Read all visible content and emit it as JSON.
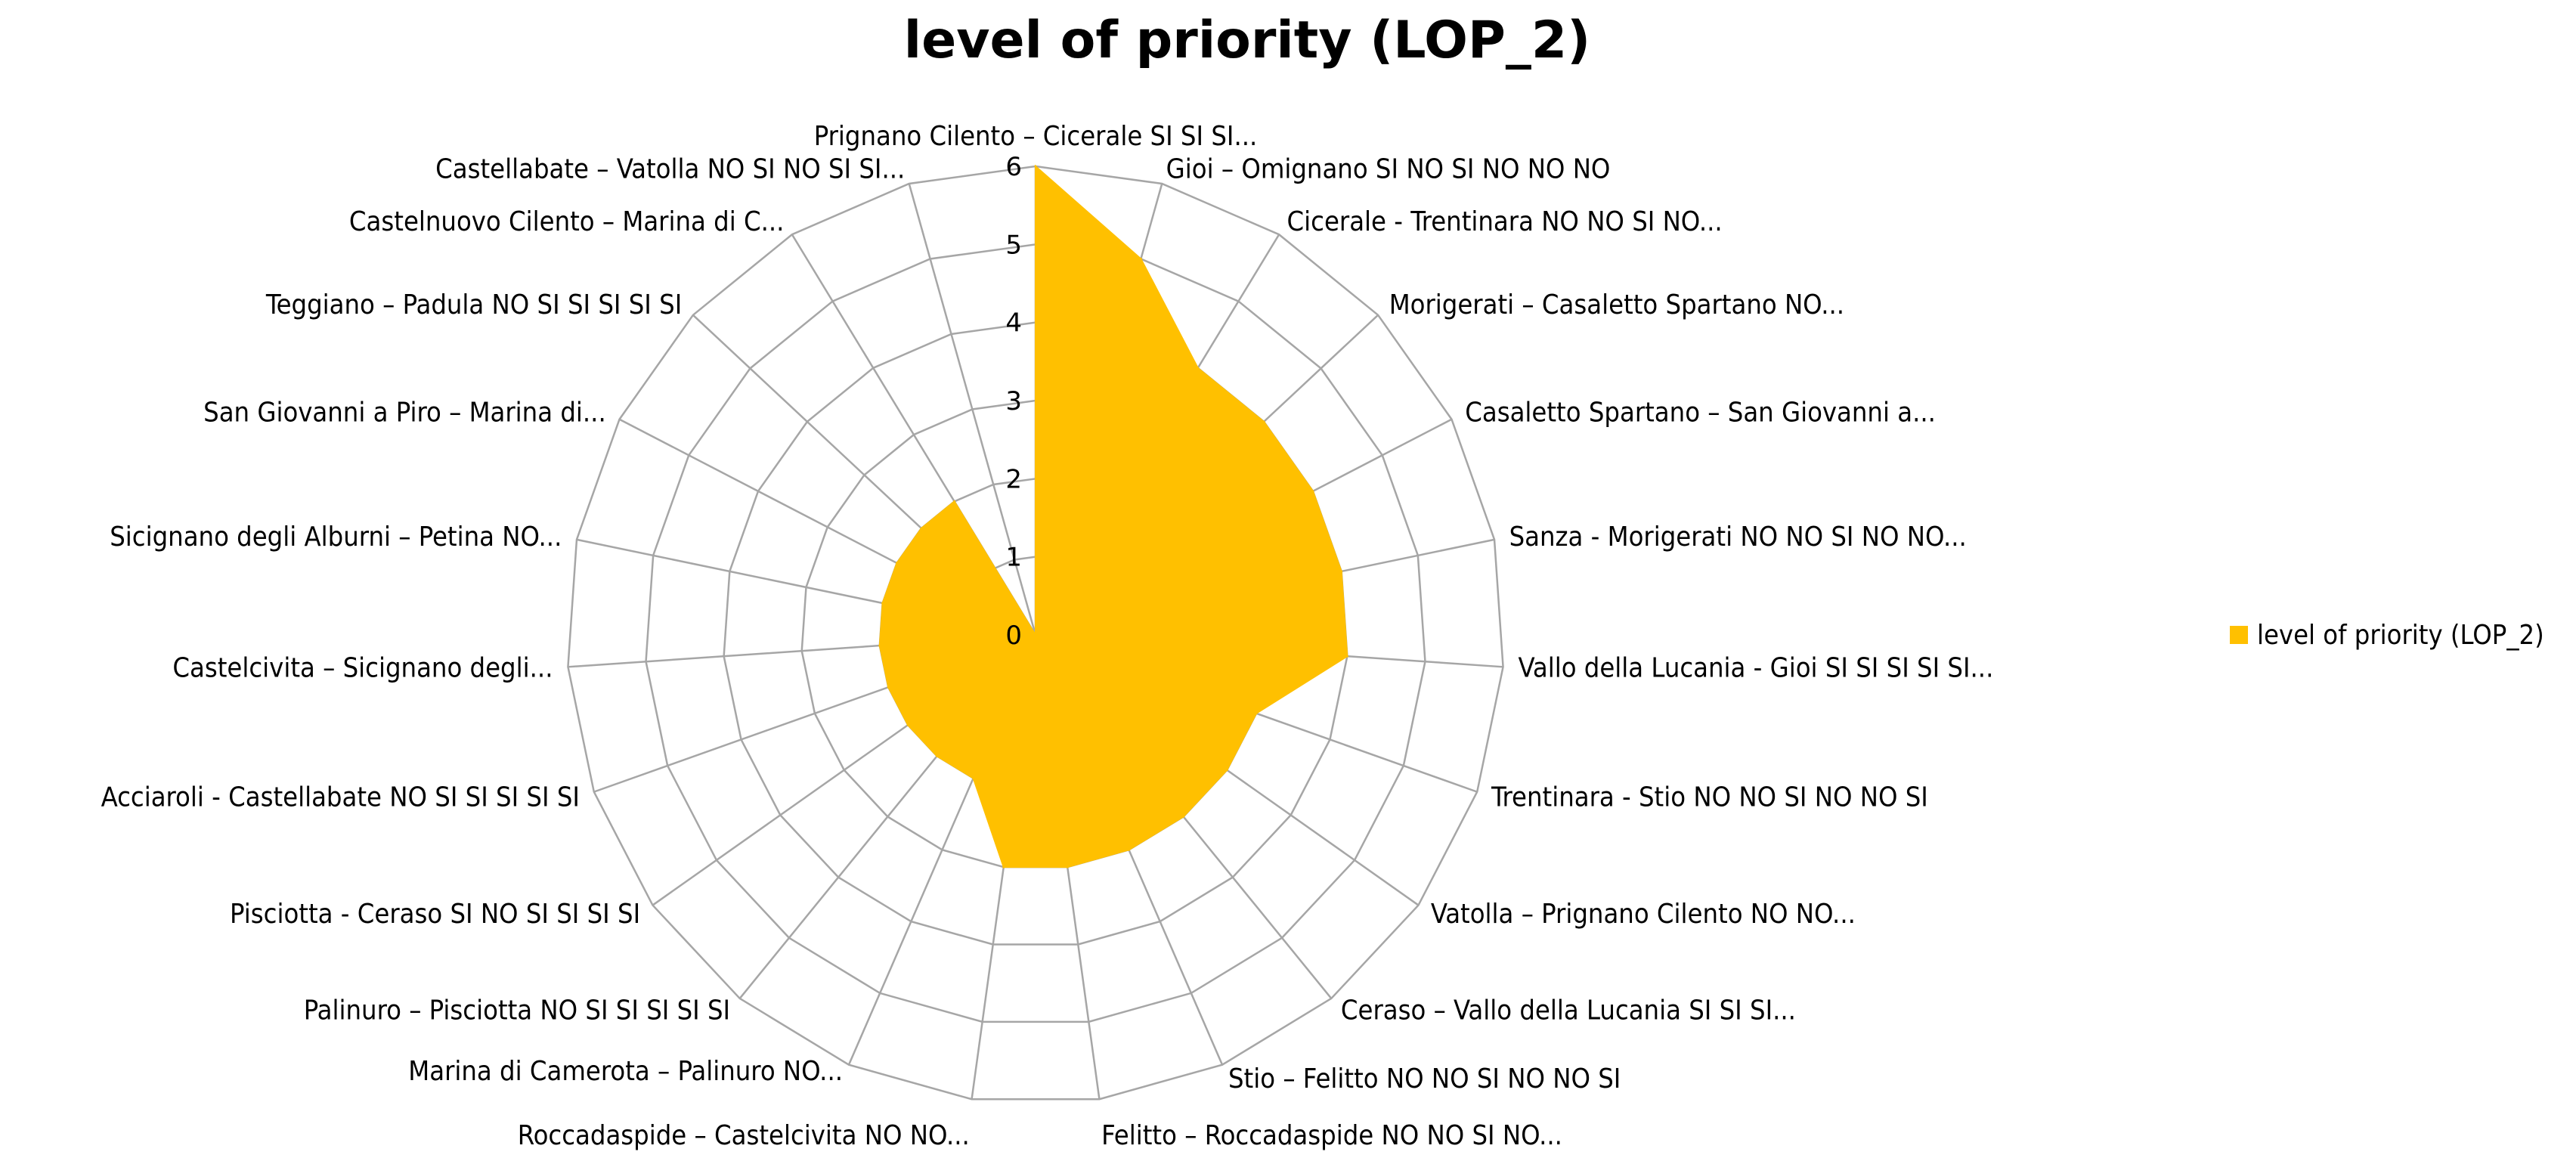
{
  "chart_data": {
    "type": "radar",
    "title": "level of priority (LOP_2)",
    "categories": [
      "Prignano Cilento – Cicerale SI SI SI...",
      "Gioi – Omignano SI NO SI NO NO NO",
      "Cicerale - Trentinara NO NO SI NO...",
      "Morigerati – Casaletto Spartano NO...",
      "Casaletto Spartano – San Giovanni a...",
      "Sanza - Morigerati NO NO SI NO NO...",
      "Vallo della Lucania - Gioi SI SI SI SI SI...",
      "Trentinara - Stio NO NO SI NO NO SI",
      "Vatolla – Prignano Cilento NO NO...",
      "Ceraso – Vallo della Lucania SI SI SI...",
      "Stio – Felitto NO NO SI NO NO SI",
      "Felitto – Roccadaspide NO NO SI NO...",
      "Roccadaspide – Castelcivita NO NO...",
      "Marina di Camerota – Palinuro NO...",
      "Palinuro – Pisciotta NO SI SI SI SI SI",
      "Pisciotta - Ceraso SI NO SI SI SI SI",
      "Acciaroli - Castellabate NO SI SI SI SI SI",
      "Castelcivita – Sicignano degli...",
      "Sicignano degli Alburni – Petina NO...",
      "San Giovanni a Piro – Marina di...",
      "Teggiano – Padula NO SI SI SI SI SI",
      "Castelnuovo Cilento – Marina di C...",
      "Castellabate – Vatolla NO SI NO SI SI..."
    ],
    "series": [
      {
        "name": "level of priority (LOP_2)",
        "color": "#FFC000",
        "values": [
          6,
          5,
          4,
          4,
          4,
          4,
          4,
          3,
          3,
          3,
          3,
          3,
          3,
          2,
          2,
          2,
          2,
          2,
          2,
          2,
          2,
          2,
          0
        ]
      }
    ],
    "rlim": [
      0,
      6
    ],
    "ticks": [
      0,
      1,
      2,
      3,
      4,
      5,
      6
    ],
    "grid": true,
    "legend_position": "right"
  }
}
